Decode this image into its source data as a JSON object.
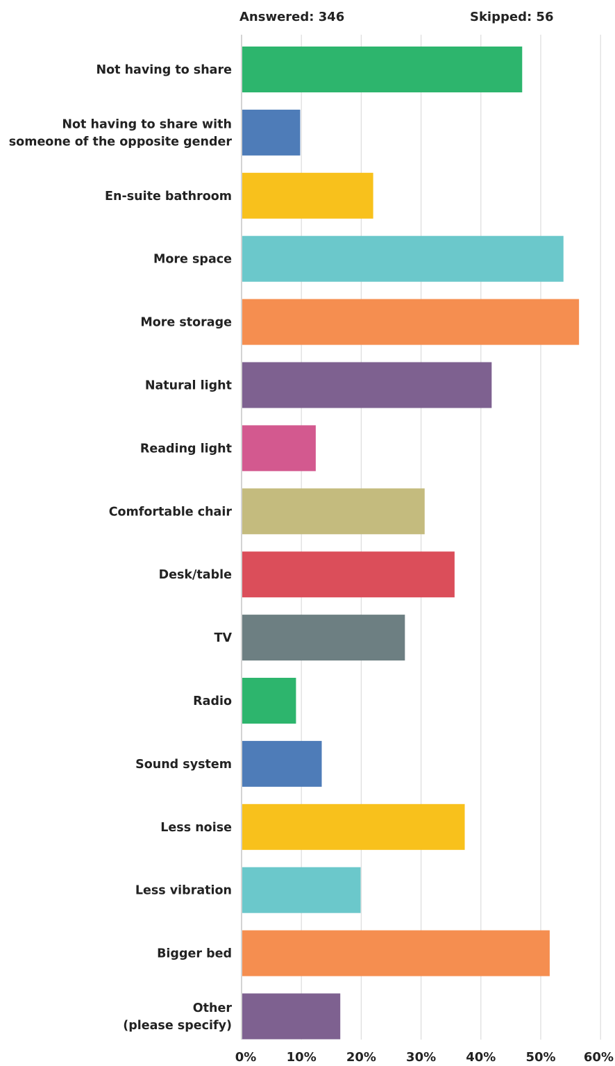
{
  "header": {
    "answered": "Answered: 346",
    "skipped": "Skipped: 56"
  },
  "chart_data": {
    "type": "bar",
    "orientation": "horizontal",
    "title": "",
    "xlabel": "",
    "ylabel": "",
    "xlim": [
      0,
      60
    ],
    "x_ticks": [
      "0%",
      "10%",
      "20%",
      "30%",
      "40%",
      "50%",
      "60%"
    ],
    "grid": true,
    "legend": "none",
    "categories": [
      [
        "Not having to share"
      ],
      [
        "Not having to share with",
        "someone of the opposite gender"
      ],
      [
        "En-suite bathroom"
      ],
      [
        "More space"
      ],
      [
        "More storage"
      ],
      [
        "Natural light"
      ],
      [
        "Reading light"
      ],
      [
        "Comfortable chair"
      ],
      [
        "Desk/table"
      ],
      [
        "TV"
      ],
      [
        "Radio"
      ],
      [
        "Sound system"
      ],
      [
        "Less noise"
      ],
      [
        "Less vibration"
      ],
      [
        "Bigger bed"
      ],
      [
        "Other",
        "(please specify)"
      ]
    ],
    "values": [
      46.9,
      9.8,
      22.0,
      53.8,
      56.4,
      41.8,
      12.4,
      30.6,
      35.6,
      27.3,
      9.1,
      13.4,
      37.3,
      19.9,
      51.5,
      16.5
    ],
    "colors": [
      "#2db56d",
      "#4e7cb8",
      "#f8c11c",
      "#6bc8cb",
      "#f58e50",
      "#7e6190",
      "#d3598f",
      "#c4bb7e",
      "#db4e5a",
      "#6d7f82",
      "#2db56d",
      "#4e7cb8",
      "#f8c11c",
      "#6bc8cb",
      "#f58e50",
      "#7e6190"
    ]
  }
}
